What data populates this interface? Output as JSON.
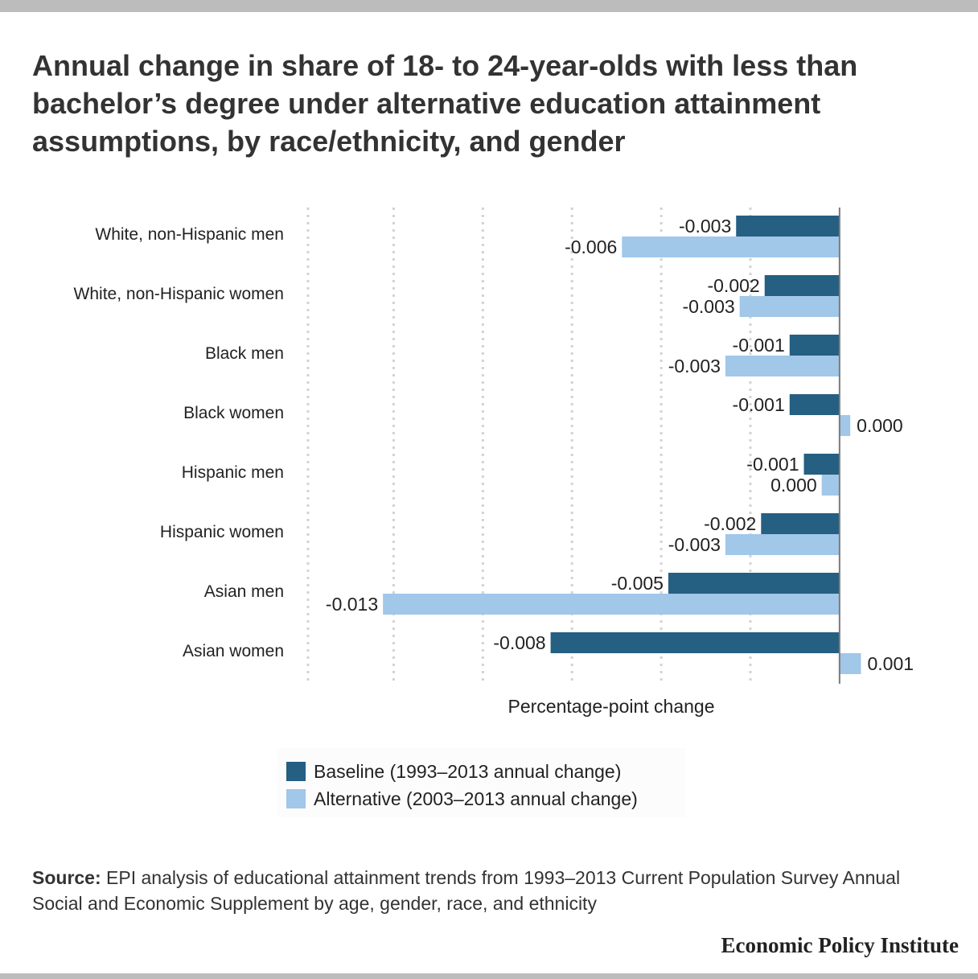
{
  "title": "Annual change in share of 18- to 24-year-olds with less than bachelor’s degree under alternative education attainment assumptions, by race/ethnicity, and gender",
  "legend": {
    "baseline": "Baseline (1993–2013 annual change)",
    "alternative": "Alternative (2003–2013 annual change)"
  },
  "source": {
    "label": "Source:",
    "text": "EPI analysis of educational attainment trends from 1993–2013 Current Population Survey Annual Social and Economic Supplement by age, gender, race, and ethnicity"
  },
  "brand": "Economic Policy Institute",
  "colors": {
    "baseline": "#255f82",
    "alternative": "#a1c7e9",
    "gridline": "#d3d3d3",
    "zero_line": "#7a7a7a"
  },
  "chart_data": {
    "type": "bar",
    "orientation": "horizontal",
    "xlabel": "Percentage-point change",
    "xlim": [
      -0.0149,
      0.0021
    ],
    "grid": true,
    "legend_position": "bottom",
    "categories": [
      "White, non-Hispanic men",
      "White, non-Hispanic women",
      "Black men",
      "Black women",
      "Hispanic men",
      "Hispanic women",
      "Asian men",
      "Asian women"
    ],
    "series": [
      {
        "name": "Baseline (1993–2013 annual change)",
        "color": "#255f82",
        "values": [
          -0.0029,
          -0.0021,
          -0.0014,
          -0.0014,
          -0.001,
          -0.0022,
          -0.0048,
          -0.0081
        ],
        "labels": [
          "-0.003",
          "-0.002",
          "-0.001",
          "-0.001",
          "-0.001",
          "-0.002",
          "-0.005",
          "-0.008"
        ]
      },
      {
        "name": "Alternative (2003–2013 annual change)",
        "color": "#a1c7e9",
        "values": [
          -0.0061,
          -0.0028,
          -0.0032,
          0.0003,
          -0.0005,
          -0.0032,
          -0.0128,
          0.0006
        ],
        "labels": [
          "-0.006",
          "-0.003",
          "-0.003",
          "0.000",
          "0.000",
          "-0.003",
          "-0.013",
          "0.001"
        ]
      }
    ]
  }
}
